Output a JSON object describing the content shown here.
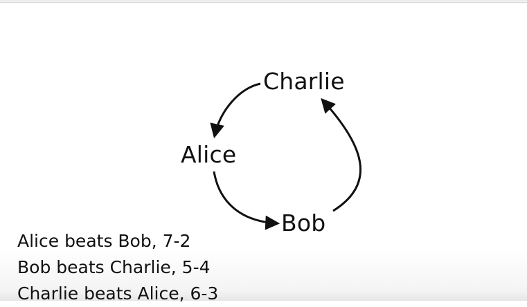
{
  "diagram": {
    "nodes": {
      "charlie": "Charlie",
      "alice": "Alice",
      "bob": "Bob"
    },
    "edges": [
      {
        "from": "Charlie",
        "to": "Alice"
      },
      {
        "from": "Alice",
        "to": "Bob"
      },
      {
        "from": "Bob",
        "to": "Charlie"
      }
    ]
  },
  "results": [
    "Alice beats Bob, 7-2",
    "Bob beats Charlie, 5-4",
    "Charlie beats Alice, 6-3"
  ]
}
